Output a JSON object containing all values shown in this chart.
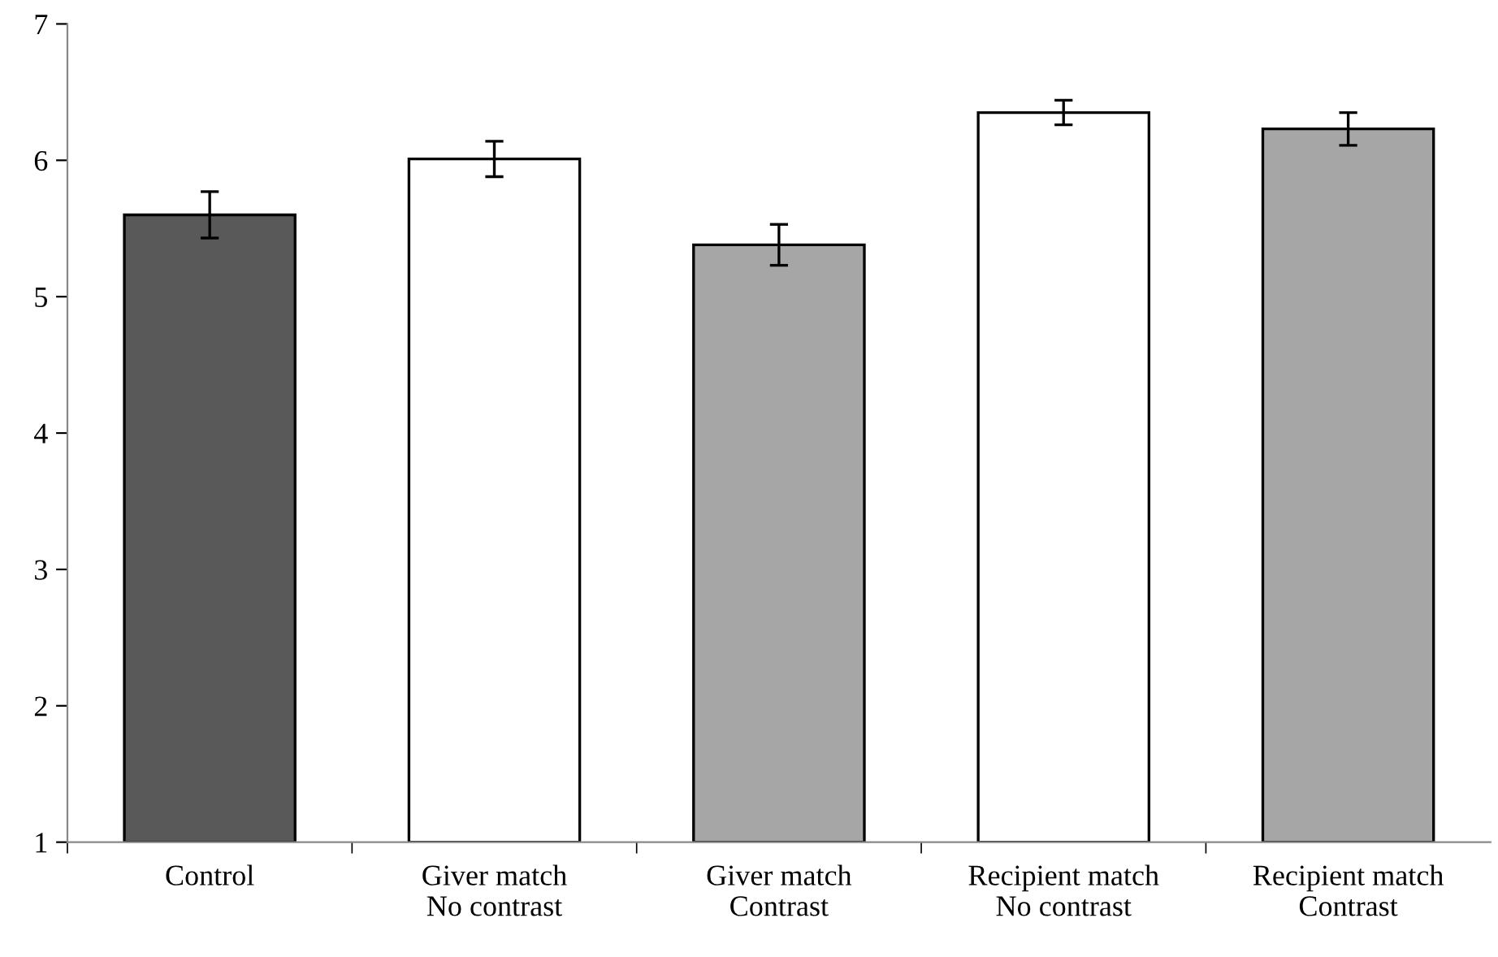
{
  "chart_data": {
    "type": "bar",
    "categories": [
      "Control",
      "Giver match\nNo contrast",
      "Giver match\nContrast",
      "Recipient match\nNo contrast",
      "Recipient match\nContrast"
    ],
    "values": [
      5.6,
      6.01,
      5.38,
      6.35,
      6.23
    ],
    "errors": [
      0.17,
      0.13,
      0.15,
      0.09,
      0.12
    ],
    "colors": [
      "#595959",
      "#ffffff",
      "#a6a6a6",
      "#ffffff",
      "#a6a6a6"
    ],
    "ylim": [
      1,
      7
    ],
    "yticks": [
      1,
      2,
      3,
      4,
      5,
      6,
      7
    ],
    "grid": false,
    "legend": false
  }
}
